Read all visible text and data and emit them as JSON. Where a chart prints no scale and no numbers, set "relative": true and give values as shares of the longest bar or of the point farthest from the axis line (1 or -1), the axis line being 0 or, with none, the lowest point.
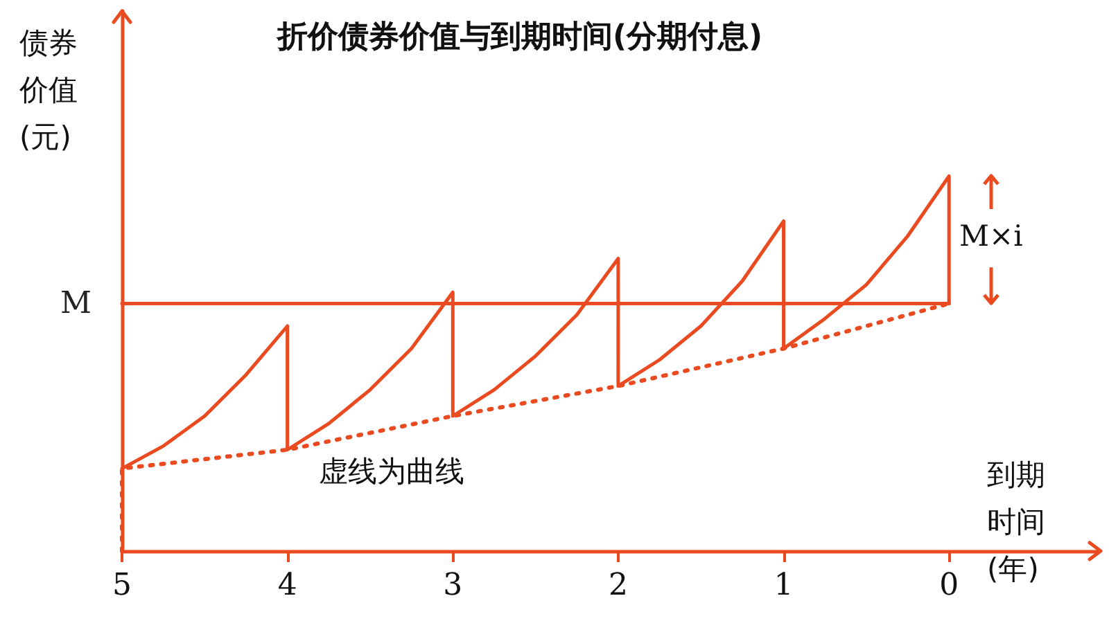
{
  "chart_data": {
    "type": "line",
    "title": "折价债券价值与到期时间(分期付息)",
    "xlabel": "到期时间(年)",
    "ylabel": "债券价值(元)",
    "annotations": [
      "M×i",
      "虚线为曲线"
    ],
    "relative": true,
    "xlim": [
      5,
      -0.9
    ],
    "xticks": [
      5,
      4,
      3,
      2,
      1,
      0
    ],
    "grid": false,
    "marker": "none",
    "series": [
      {
        "color": "#ea4a1f",
        "line_style": "solid",
        "x": [
          5,
          4.75,
          4.5,
          4.25,
          4,
          4,
          3.75,
          3.5,
          3.25,
          3,
          3,
          2.75,
          2.5,
          2.25,
          2,
          2,
          1.75,
          1.5,
          1.25,
          1,
          1,
          0.75,
          0.5,
          0.25,
          0,
          0
        ],
        "values": [
          0.22,
          0.28,
          0.36,
          0.47,
          0.6,
          0.27,
          0.34,
          0.43,
          0.54,
          0.69,
          0.36,
          0.43,
          0.52,
          0.63,
          0.78,
          0.44,
          0.51,
          0.6,
          0.72,
          0.88,
          0.54,
          0.62,
          0.71,
          0.84,
          1,
          0.66
        ]
      },
      {
        "color": "#ea4a1f",
        "line_style": "dotted",
        "x": [
          5,
          5,
          4,
          3,
          2,
          1,
          0
        ],
        "values": [
          0,
          0.22,
          0.27,
          0.36,
          0.44,
          0.54,
          0.66
        ]
      },
      {
        "name": "M",
        "color": "#ea4a1f",
        "line_style": "solid",
        "x": [
          5,
          0
        ],
        "values": [
          0.66,
          0.66
        ]
      }
    ]
  }
}
